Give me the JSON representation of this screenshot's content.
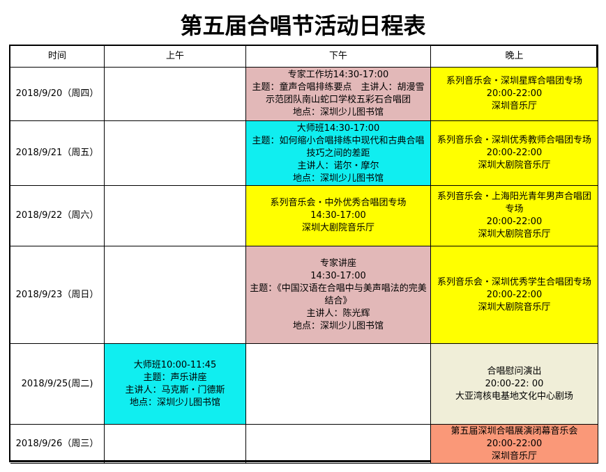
{
  "title": "第五届合唱节活动日程表",
  "headers": [
    "时间",
    "上午",
    "下午",
    "晚上"
  ],
  "colors": {
    "pink": "#E2B8B8",
    "cyan": "#10EEF0",
    "yellow": "#FFFF00",
    "beige": "#F0EED8",
    "salmon": "#FA9878"
  },
  "rows": [
    {
      "date": "2018/9/20（周四）",
      "am": [],
      "pm": [
        "专家工作坊14:30-17:00",
        "主题：童声合唱排练要点　主讲人：胡漫雪",
        "示范团队南山蛇口学校五彩石合唱团",
        "地点：深圳少儿图书馆"
      ],
      "eve": [
        "系列音乐会・深圳星辉合唱团专场",
        "20:00-22:00",
        "深圳音乐厅"
      ]
    },
    {
      "date": "2018/9/21（周五）",
      "am": [],
      "pm": [
        "大师班14:30-17:00",
        "主题：如何缩小合唱排练中现代和古典合唱技巧之间的差距",
        "主讲人：诺尔・摩尔",
        "地点：深圳少儿图书馆"
      ],
      "eve": [
        "系列音乐会・深圳优秀教师合唱团专场",
        "20:00-22:00",
        "深圳大剧院音乐厅"
      ]
    },
    {
      "date": "2018/9/22（周六）",
      "am": [],
      "pm": [
        "系列音乐会・中外优秀合唱团专场",
        "14:30-17:00",
        "深圳大剧院音乐厅"
      ],
      "eve": [
        "系列音乐会・上海阳光青年男声合唱团专场",
        "20:00-22:00",
        "深圳大剧院音乐厅"
      ]
    },
    {
      "date": "2018/9/23（周日）",
      "am": [],
      "pm": [
        "专家讲座",
        "14:30-17:00",
        "主题：《中国汉语在合唱中与美声唱法的完美结合》",
        "主讲人：陈光辉",
        "地点：深圳少儿图书馆"
      ],
      "eve": [
        "系列音乐会・深圳优秀学生合唱团专场",
        "20:00-22:00",
        "深圳大剧院音乐厅"
      ]
    },
    {
      "date": "2018/9/25(周二)",
      "am": [
        "大师班10:00-11:45",
        "主题：声乐讲座",
        "主讲人：马克斯・门德斯",
        "地点：深圳少儿图书馆"
      ],
      "pm": [],
      "eve": [
        "合唱慰问演出",
        "20:00-22: 00",
        "大亚湾核电基地文化中心剧场"
      ]
    },
    {
      "date": "2018/9/26（周三）",
      "am": [],
      "pm": [],
      "eve": [
        "第五届深圳合唱展演闭幕音乐会",
        "20:00-22:00",
        "深圳音乐厅"
      ]
    }
  ]
}
